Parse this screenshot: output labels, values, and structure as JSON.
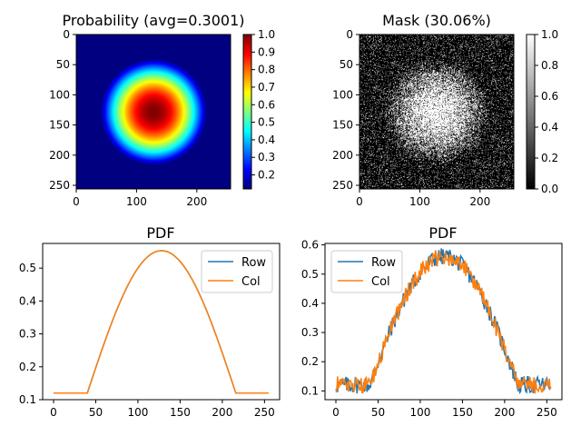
{
  "chart_data": [
    {
      "type": "heatmap",
      "title": "Probability (avg=0.3001)",
      "colormap": "jet",
      "image_size": [
        256,
        256
      ],
      "center": [
        128,
        128
      ],
      "radius": 88,
      "min": 0.12,
      "max": 1.0,
      "xticks": [
        0,
        100,
        200
      ],
      "yticks": [
        0,
        50,
        100,
        150,
        200,
        250
      ],
      "colorbar": {
        "ticks": [
          0.2,
          0.3,
          0.4,
          0.5,
          0.6,
          0.7,
          0.8,
          0.9,
          1.0
        ],
        "range": [
          0.12,
          1.0
        ]
      }
    },
    {
      "type": "heatmap",
      "title": "Mask (30.06%)",
      "colormap": "gray",
      "image_size": [
        256,
        256
      ],
      "center": [
        128,
        128
      ],
      "radius": 88,
      "base_probability": 0.12,
      "peak_probability": 0.55,
      "xticks": [
        0,
        100,
        200
      ],
      "yticks": [
        0,
        50,
        100,
        150,
        200,
        250
      ],
      "colorbar": {
        "ticks": [
          0.0,
          0.2,
          0.4,
          0.6,
          0.8,
          1.0
        ],
        "range": [
          0.0,
          1.0
        ]
      }
    },
    {
      "type": "line",
      "title": "PDF",
      "xlim": [
        0,
        255
      ],
      "ylim": [
        0.1,
        0.575
      ],
      "xticks": [
        0,
        50,
        100,
        150,
        200,
        250
      ],
      "yticks": [
        0.1,
        0.2,
        0.3,
        0.4,
        0.5
      ],
      "legend": "top-right",
      "smooth_model": {
        "base": 0.12,
        "peak": 0.553,
        "center": 128,
        "radius": 88
      },
      "series": [
        {
          "name": "Row",
          "color": "#1f77b4"
        },
        {
          "name": "Col",
          "color": "#ff7f0e"
        }
      ]
    },
    {
      "type": "line",
      "title": "PDF",
      "xlim": [
        0,
        255
      ],
      "ylim": [
        0.07,
        0.605
      ],
      "xticks": [
        0,
        50,
        100,
        150,
        200,
        250
      ],
      "yticks": [
        0.1,
        0.2,
        0.3,
        0.4,
        0.5,
        0.6
      ],
      "legend": "top-left",
      "noisy_model": {
        "base": 0.12,
        "peak": 0.56,
        "center": 128,
        "radius": 88,
        "noise": 0.03
      },
      "series": [
        {
          "name": "Row",
          "color": "#1f77b4"
        },
        {
          "name": "Col",
          "color": "#ff7f0e"
        }
      ]
    }
  ]
}
